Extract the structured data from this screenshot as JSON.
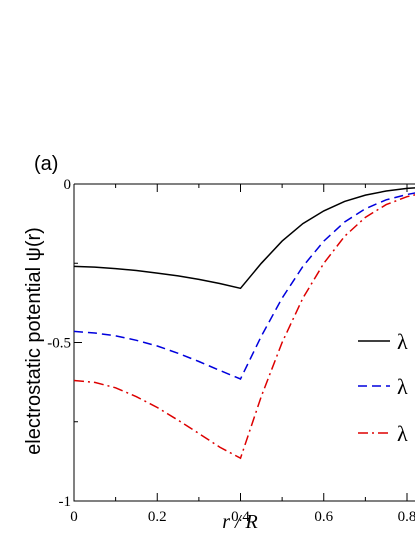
{
  "chart_data": {
    "type": "line",
    "panel_label": "(a)",
    "xlabel": "r / R",
    "ylabel": "electrostatic potential  ψ(r)",
    "xlim": [
      0,
      0.8
    ],
    "ylim": [
      -1,
      0
    ],
    "x_ticks": [
      {
        "value": 0,
        "label": "0"
      },
      {
        "value": 0.2,
        "label": "0.2"
      },
      {
        "value": 0.4,
        "label": "0.4"
      },
      {
        "value": 0.6,
        "label": "0.6"
      },
      {
        "value": 0.8,
        "label": "0.8"
      }
    ],
    "y_ticks": [
      {
        "value": 0,
        "label": "0"
      },
      {
        "value": -0.5,
        "label": "-0.5"
      },
      {
        "value": -1,
        "label": "-1"
      }
    ],
    "legend_position": "right",
    "series": [
      {
        "name": "λ",
        "color": "#000000",
        "dash": "solid",
        "x": [
          0,
          0.05,
          0.1,
          0.15,
          0.2,
          0.25,
          0.3,
          0.35,
          0.4,
          0.45,
          0.5,
          0.55,
          0.6,
          0.65,
          0.7,
          0.75,
          0.8,
          0.82
        ],
        "y": [
          -0.26,
          -0.262,
          -0.267,
          -0.273,
          -0.281,
          -0.29,
          -0.301,
          -0.314,
          -0.329,
          -0.25,
          -0.18,
          -0.125,
          -0.085,
          -0.055,
          -0.035,
          -0.022,
          -0.014,
          -0.012
        ]
      },
      {
        "name": "λ",
        "color": "#0000dd",
        "dash": "dashed",
        "x": [
          0,
          0.05,
          0.1,
          0.15,
          0.2,
          0.25,
          0.3,
          0.35,
          0.4,
          0.45,
          0.5,
          0.55,
          0.6,
          0.65,
          0.7,
          0.75,
          0.8,
          0.82
        ],
        "y": [
          -0.465,
          -0.47,
          -0.479,
          -0.493,
          -0.511,
          -0.534,
          -0.56,
          -0.588,
          -0.615,
          -0.48,
          -0.36,
          -0.26,
          -0.18,
          -0.12,
          -0.078,
          -0.05,
          -0.033,
          -0.028
        ]
      },
      {
        "name": "λ",
        "color": "#dd0000",
        "dash": "dashdot",
        "x": [
          0,
          0.05,
          0.1,
          0.15,
          0.2,
          0.25,
          0.3,
          0.35,
          0.4,
          0.45,
          0.5,
          0.55,
          0.6,
          0.65,
          0.7,
          0.75,
          0.8,
          0.82
        ],
        "y": [
          -0.62,
          -0.626,
          -0.643,
          -0.671,
          -0.705,
          -0.745,
          -0.787,
          -0.83,
          -0.865,
          -0.67,
          -0.5,
          -0.36,
          -0.25,
          -0.165,
          -0.105,
          -0.065,
          -0.04,
          -0.034
        ]
      }
    ]
  }
}
